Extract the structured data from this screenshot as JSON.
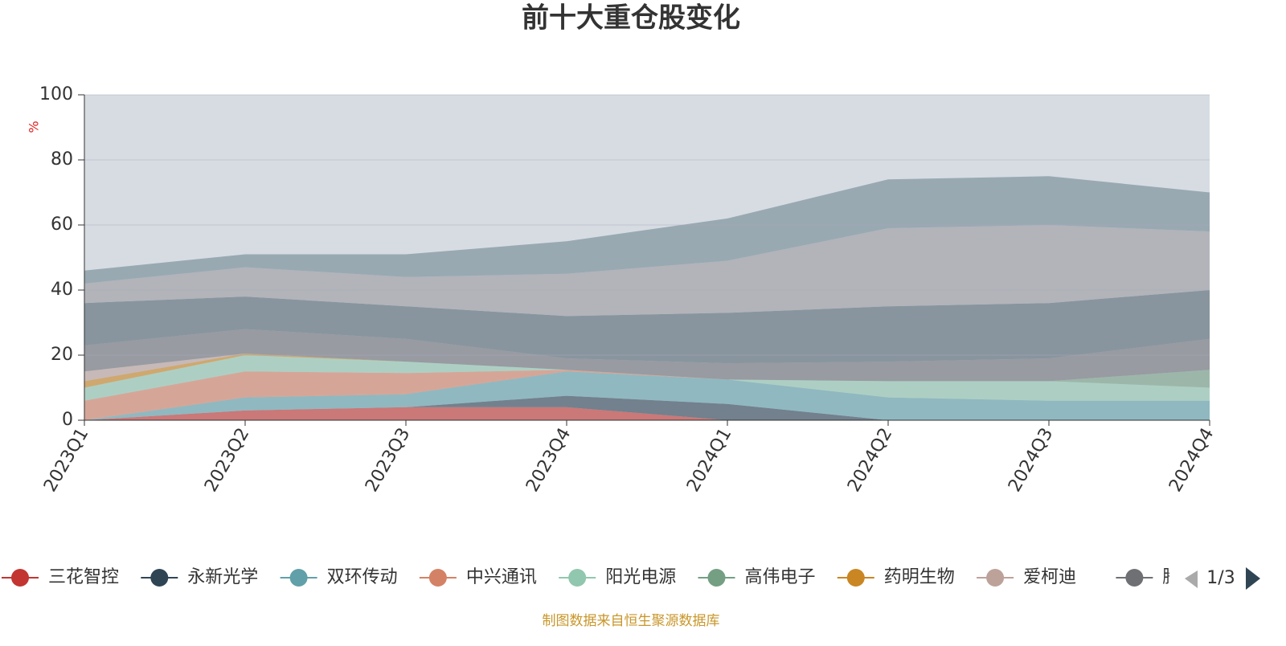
{
  "chart_data": {
    "type": "area",
    "stacked": true,
    "title": "前十大重仓股变化",
    "y_axis_label": "%",
    "footer": "制图数据来自恒生聚源数据库",
    "legend_page": "1/3",
    "categories": [
      "2023Q1",
      "2023Q2",
      "2023Q3",
      "2023Q4",
      "2024Q1",
      "2024Q2",
      "2024Q3",
      "2024Q4"
    ],
    "ylim": [
      0,
      100
    ],
    "yticks": [
      0,
      20,
      40,
      60,
      80,
      100
    ],
    "grid": true,
    "series": [
      {
        "name": "三花智控",
        "color": "#c23531",
        "values": [
          0,
          3,
          4,
          4,
          0,
          0,
          0,
          0
        ]
      },
      {
        "name": "永新光学",
        "color": "#2f4554",
        "values": [
          0,
          0,
          0,
          3.5,
          5,
          0,
          0,
          0
        ]
      },
      {
        "name": "双环传动",
        "color": "#61a0a8",
        "values": [
          0,
          4,
          4,
          7.5,
          7.5,
          7,
          6,
          6
        ]
      },
      {
        "name": "中兴通讯",
        "color": "#d48265",
        "values": [
          6,
          8,
          6.5,
          0.5,
          0,
          0,
          0,
          0
        ]
      },
      {
        "name": "阳光电源",
        "color": "#91c7ae",
        "values": [
          4,
          5,
          3.5,
          0,
          0,
          5,
          6,
          4
        ]
      },
      {
        "name": "高伟电子",
        "color": "#749f83",
        "values": [
          0,
          0,
          0,
          0,
          0,
          0,
          0,
          5.5
        ]
      },
      {
        "name": "药明生物",
        "color": "#ca8622",
        "values": [
          2,
          0.5,
          0,
          0,
          0,
          0,
          0,
          0
        ]
      },
      {
        "name": "爱柯迪",
        "color": "#bda29a",
        "values": [
          3,
          0,
          0,
          0,
          0,
          0,
          0,
          0
        ]
      },
      {
        "name": "腾讯控股",
        "color": "#6e7074",
        "values": [
          8,
          7.5,
          7,
          3.5,
          5,
          6,
          7,
          9.5
        ]
      },
      {
        "color": "#546570",
        "values": [
          13,
          10,
          10,
          13,
          15.5,
          17,
          17,
          15
        ]
      },
      {
        "color": "#9a9a9e",
        "values": [
          6,
          9,
          9,
          13,
          16,
          24,
          24,
          18
        ]
      },
      {
        "color": "#6f8791",
        "values": [
          4,
          4,
          7,
          10,
          13,
          15,
          15,
          12
        ]
      }
    ]
  }
}
